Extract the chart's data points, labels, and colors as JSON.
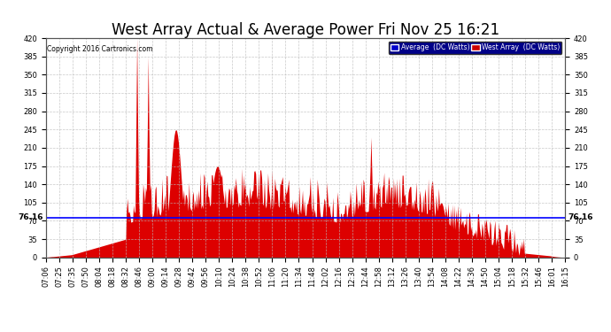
{
  "title": "West Array Actual & Average Power Fri Nov 25 16:21",
  "copyright": "Copyright 2016 Cartronics.com",
  "legend_labels": [
    "Average  (DC Watts)",
    "West Array  (DC Watts)"
  ],
  "legend_bg_colors": [
    "#0000cc",
    "#cc0000"
  ],
  "average_value": 76.16,
  "ylim": [
    0.0,
    420.0
  ],
  "yticks": [
    0.0,
    35.0,
    70.0,
    105.0,
    140.0,
    175.0,
    210.0,
    245.0,
    280.0,
    315.0,
    350.0,
    385.0,
    420.0
  ],
  "fill_color": "#dd0000",
  "avg_line_color": "#0000ff",
  "background_color": "#ffffff",
  "grid_color": "#bbbbbb",
  "title_fontsize": 12,
  "tick_fontsize": 6,
  "avg_label_fontsize": 6.5,
  "xtick_labels": [
    "07:06",
    "07:25",
    "07:35",
    "07:50",
    "08:04",
    "08:18",
    "08:32",
    "08:46",
    "09:00",
    "09:14",
    "09:28",
    "09:42",
    "09:56",
    "10:10",
    "10:24",
    "10:38",
    "10:52",
    "11:06",
    "11:20",
    "11:34",
    "11:48",
    "12:02",
    "12:16",
    "12:30",
    "12:44",
    "12:58",
    "13:12",
    "13:26",
    "13:40",
    "13:54",
    "14:08",
    "14:22",
    "14:36",
    "14:50",
    "15:04",
    "15:18",
    "15:32",
    "15:46",
    "16:01",
    "16:15"
  ]
}
